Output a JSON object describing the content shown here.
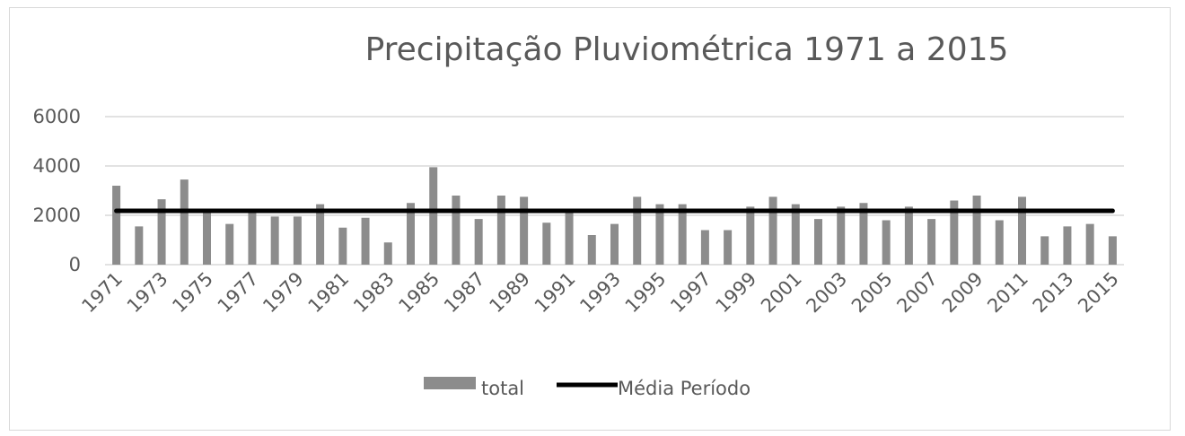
{
  "chart_data": {
    "type": "bar",
    "title": "Precipitação Pluviométrica 1971 a 2015",
    "xlabel": "",
    "ylabel": "",
    "ylim": [
      0,
      6000
    ],
    "yticks": [
      0,
      2000,
      4000,
      6000
    ],
    "categories": [
      "1971",
      "1972",
      "1973",
      "1974",
      "1975",
      "1976",
      "1977",
      "1978",
      "1979",
      "1980",
      "1981",
      "1982",
      "1983",
      "1984",
      "1985",
      "1986",
      "1987",
      "1988",
      "1989",
      "1990",
      "1991",
      "1992",
      "1993",
      "1994",
      "1995",
      "1996",
      "1997",
      "1998",
      "1999",
      "2000",
      "2001",
      "2002",
      "2003",
      "2004",
      "2005",
      "2006",
      "2007",
      "2008",
      "2009",
      "2010",
      "2011",
      "2012",
      "2013",
      "2014",
      "2015"
    ],
    "tick_labels": [
      "1971",
      "1973",
      "1975",
      "1977",
      "1979",
      "1981",
      "1983",
      "1985",
      "1987",
      "1989",
      "1991",
      "1993",
      "1995",
      "1997",
      "1999",
      "2001",
      "2003",
      "2005",
      "2007",
      "2009",
      "2011",
      "2013",
      "2015"
    ],
    "series": [
      {
        "name": "total",
        "type": "bar",
        "color": "#8c8c8c",
        "values": [
          3200,
          1550,
          2650,
          3450,
          2250,
          1650,
          2100,
          1950,
          1950,
          2450,
          1500,
          1900,
          900,
          2500,
          3950,
          2800,
          1850,
          2800,
          2750,
          1700,
          2150,
          1200,
          1650,
          2750,
          2450,
          2450,
          1400,
          1400,
          2350,
          2750,
          2450,
          1850,
          2350,
          2500,
          1800,
          2350,
          1850,
          2600,
          2800,
          1800,
          2750,
          1150,
          1550,
          1650,
          1150
        ]
      },
      {
        "name": "Média Período",
        "type": "line",
        "color": "#000000",
        "values": [
          2180,
          2180,
          2180,
          2180,
          2180,
          2180,
          2180,
          2180,
          2180,
          2180,
          2180,
          2180,
          2180,
          2180,
          2180,
          2180,
          2180,
          2180,
          2180,
          2180,
          2180,
          2180,
          2180,
          2180,
          2180,
          2180,
          2180,
          2180,
          2180,
          2180,
          2180,
          2180,
          2180,
          2180,
          2180,
          2180,
          2180,
          2180,
          2180,
          2180,
          2180,
          2180,
          2180,
          2180,
          2180
        ]
      }
    ],
    "grid": true,
    "legend_position": "bottom"
  }
}
